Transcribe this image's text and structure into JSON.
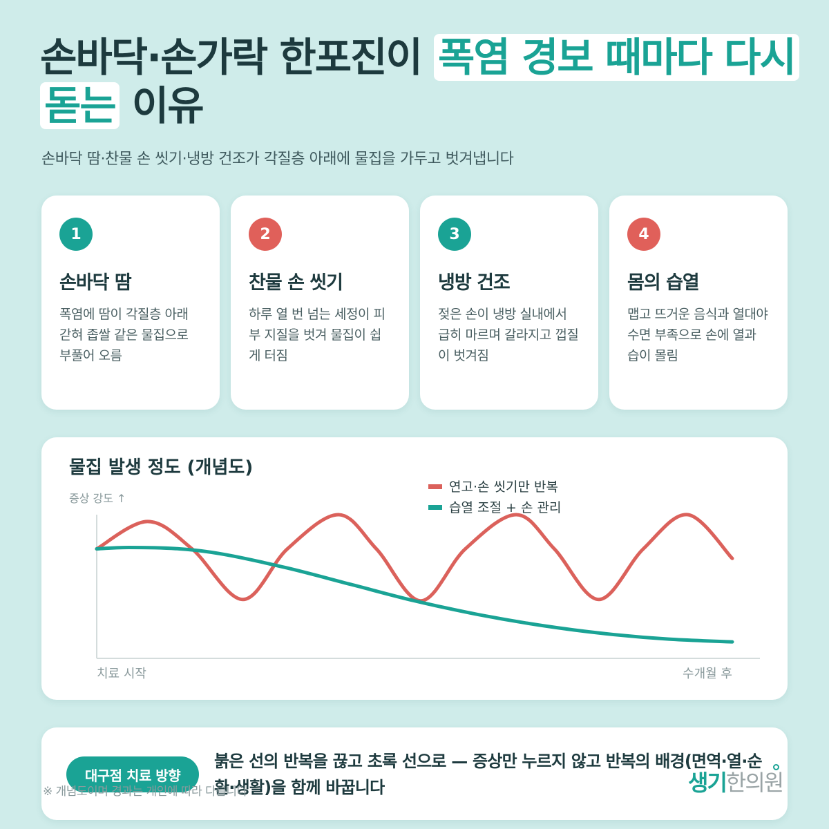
{
  "title": {
    "part1": "손바닥·손가락 한포진이 ",
    "highlight1": "폭염 경보 때마다 다시 돋는",
    "part2": " 이유"
  },
  "subtitle": "손바닥 땀·찬물 손 씻기·냉방 건조가 각질층 아래에 물집을 가두고 벗겨냅니다",
  "cards": [
    {
      "num": "1",
      "title": "손바닥 땀",
      "desc": "폭염에 땀이 각질층 아래 갇혀 좁쌀 같은 물집으로 부풀어 오름",
      "color": "#1aa395"
    },
    {
      "num": "2",
      "title": "찬물 손 씻기",
      "desc": "하루 열 번 넘는 세정이 피부 지질을 벗겨 물집이 쉽게 터짐",
      "color": "#e0605a"
    },
    {
      "num": "3",
      "title": "냉방 건조",
      "desc": "젖은 손이 냉방 실내에서 급히 마르며 갈라지고 껍질이 벗겨짐",
      "color": "#1aa395"
    },
    {
      "num": "4",
      "title": "몸의 습열",
      "desc": "맵고 뜨거운 음식과 열대야 수면 부족으로 손에 열과 습이 몰림",
      "color": "#e0605a"
    }
  ],
  "chart_data": {
    "type": "line",
    "title": "물집 발생 정도 (개념도)",
    "ylabel": "증상 강도 ↑",
    "xlabel_start": "치료 시작",
    "xlabel_end": "수개월 후",
    "x_range": [
      0,
      1
    ],
    "ylim": [
      0,
      1
    ],
    "grid": false,
    "legend_position": "top-right",
    "series": [
      {
        "name": "연고·손 씻기만 반복",
        "color": "#db615b",
        "x": [
          0,
          0.08,
          0.15,
          0.23,
          0.3,
          0.38,
          0.44,
          0.51,
          0.58,
          0.66,
          0.72,
          0.79,
          0.86,
          0.93,
          1.0
        ],
        "values": [
          0.75,
          0.95,
          0.75,
          0.38,
          0.75,
          1.0,
          0.75,
          0.37,
          0.75,
          1.0,
          0.75,
          0.38,
          0.75,
          1.0,
          0.68
        ]
      },
      {
        "name": "습열 조절 + 손 관리",
        "color": "#1aa395",
        "x": [
          0,
          0.05,
          0.13,
          0.2,
          0.3,
          0.4,
          0.5,
          0.6,
          0.7,
          0.8,
          0.9,
          1.0
        ],
        "values": [
          0.75,
          0.76,
          0.75,
          0.71,
          0.61,
          0.49,
          0.37,
          0.27,
          0.19,
          0.13,
          0.09,
          0.07
        ]
      }
    ]
  },
  "bottom": {
    "pill_label": "대구점 치료 방향",
    "message": "붉은 선의 반복을 끊고 초록 선으로 — 증상만 누르지 않고 반복의 배경(면역·열·순환·생활)을 함께 바꿉니다"
  },
  "footnote": "※ 개념도이며 경과는 개인에 따라 다릅니다",
  "brand": {
    "name_colored": "생기",
    "name_gray": "한의원"
  }
}
